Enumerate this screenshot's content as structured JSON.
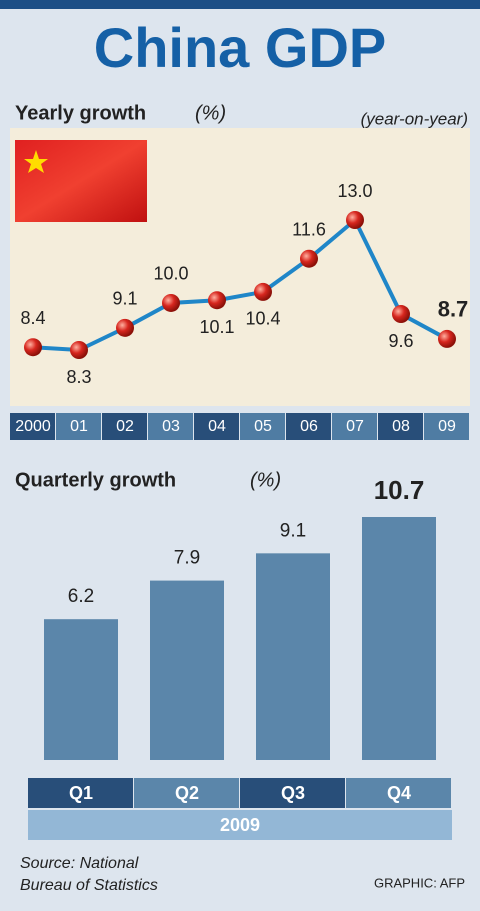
{
  "title": "China GDP",
  "source": [
    "Source: National",
    "Bureau of Statistics"
  ],
  "credit": "GRAPHIC: AFP",
  "chart_data": [
    {
      "type": "line",
      "title": "Yearly growth",
      "unit": "(%)",
      "subtitle": "(year-on-year)",
      "categories": [
        "2000",
        "01",
        "02",
        "03",
        "04",
        "05",
        "06",
        "07",
        "08",
        "09"
      ],
      "values": [
        8.4,
        8.3,
        9.1,
        10.0,
        10.1,
        10.4,
        11.6,
        13.0,
        9.6,
        8.7
      ],
      "value_labels": [
        "8.4",
        "8.3",
        "9.1",
        "10.0",
        "10.1",
        "10.4",
        "11.6",
        "13.0",
        "9.6",
        "8.7"
      ],
      "color": "#1f86c8",
      "marker_color": "#d7261e"
    },
    {
      "type": "bar",
      "title": "Quarterly growth",
      "unit": "(%)",
      "categories": [
        "Q1",
        "Q2",
        "Q3",
        "Q4"
      ],
      "group_label": "2009",
      "values": [
        6.2,
        7.9,
        9.1,
        10.7
      ],
      "color": "#5b86aa"
    }
  ]
}
